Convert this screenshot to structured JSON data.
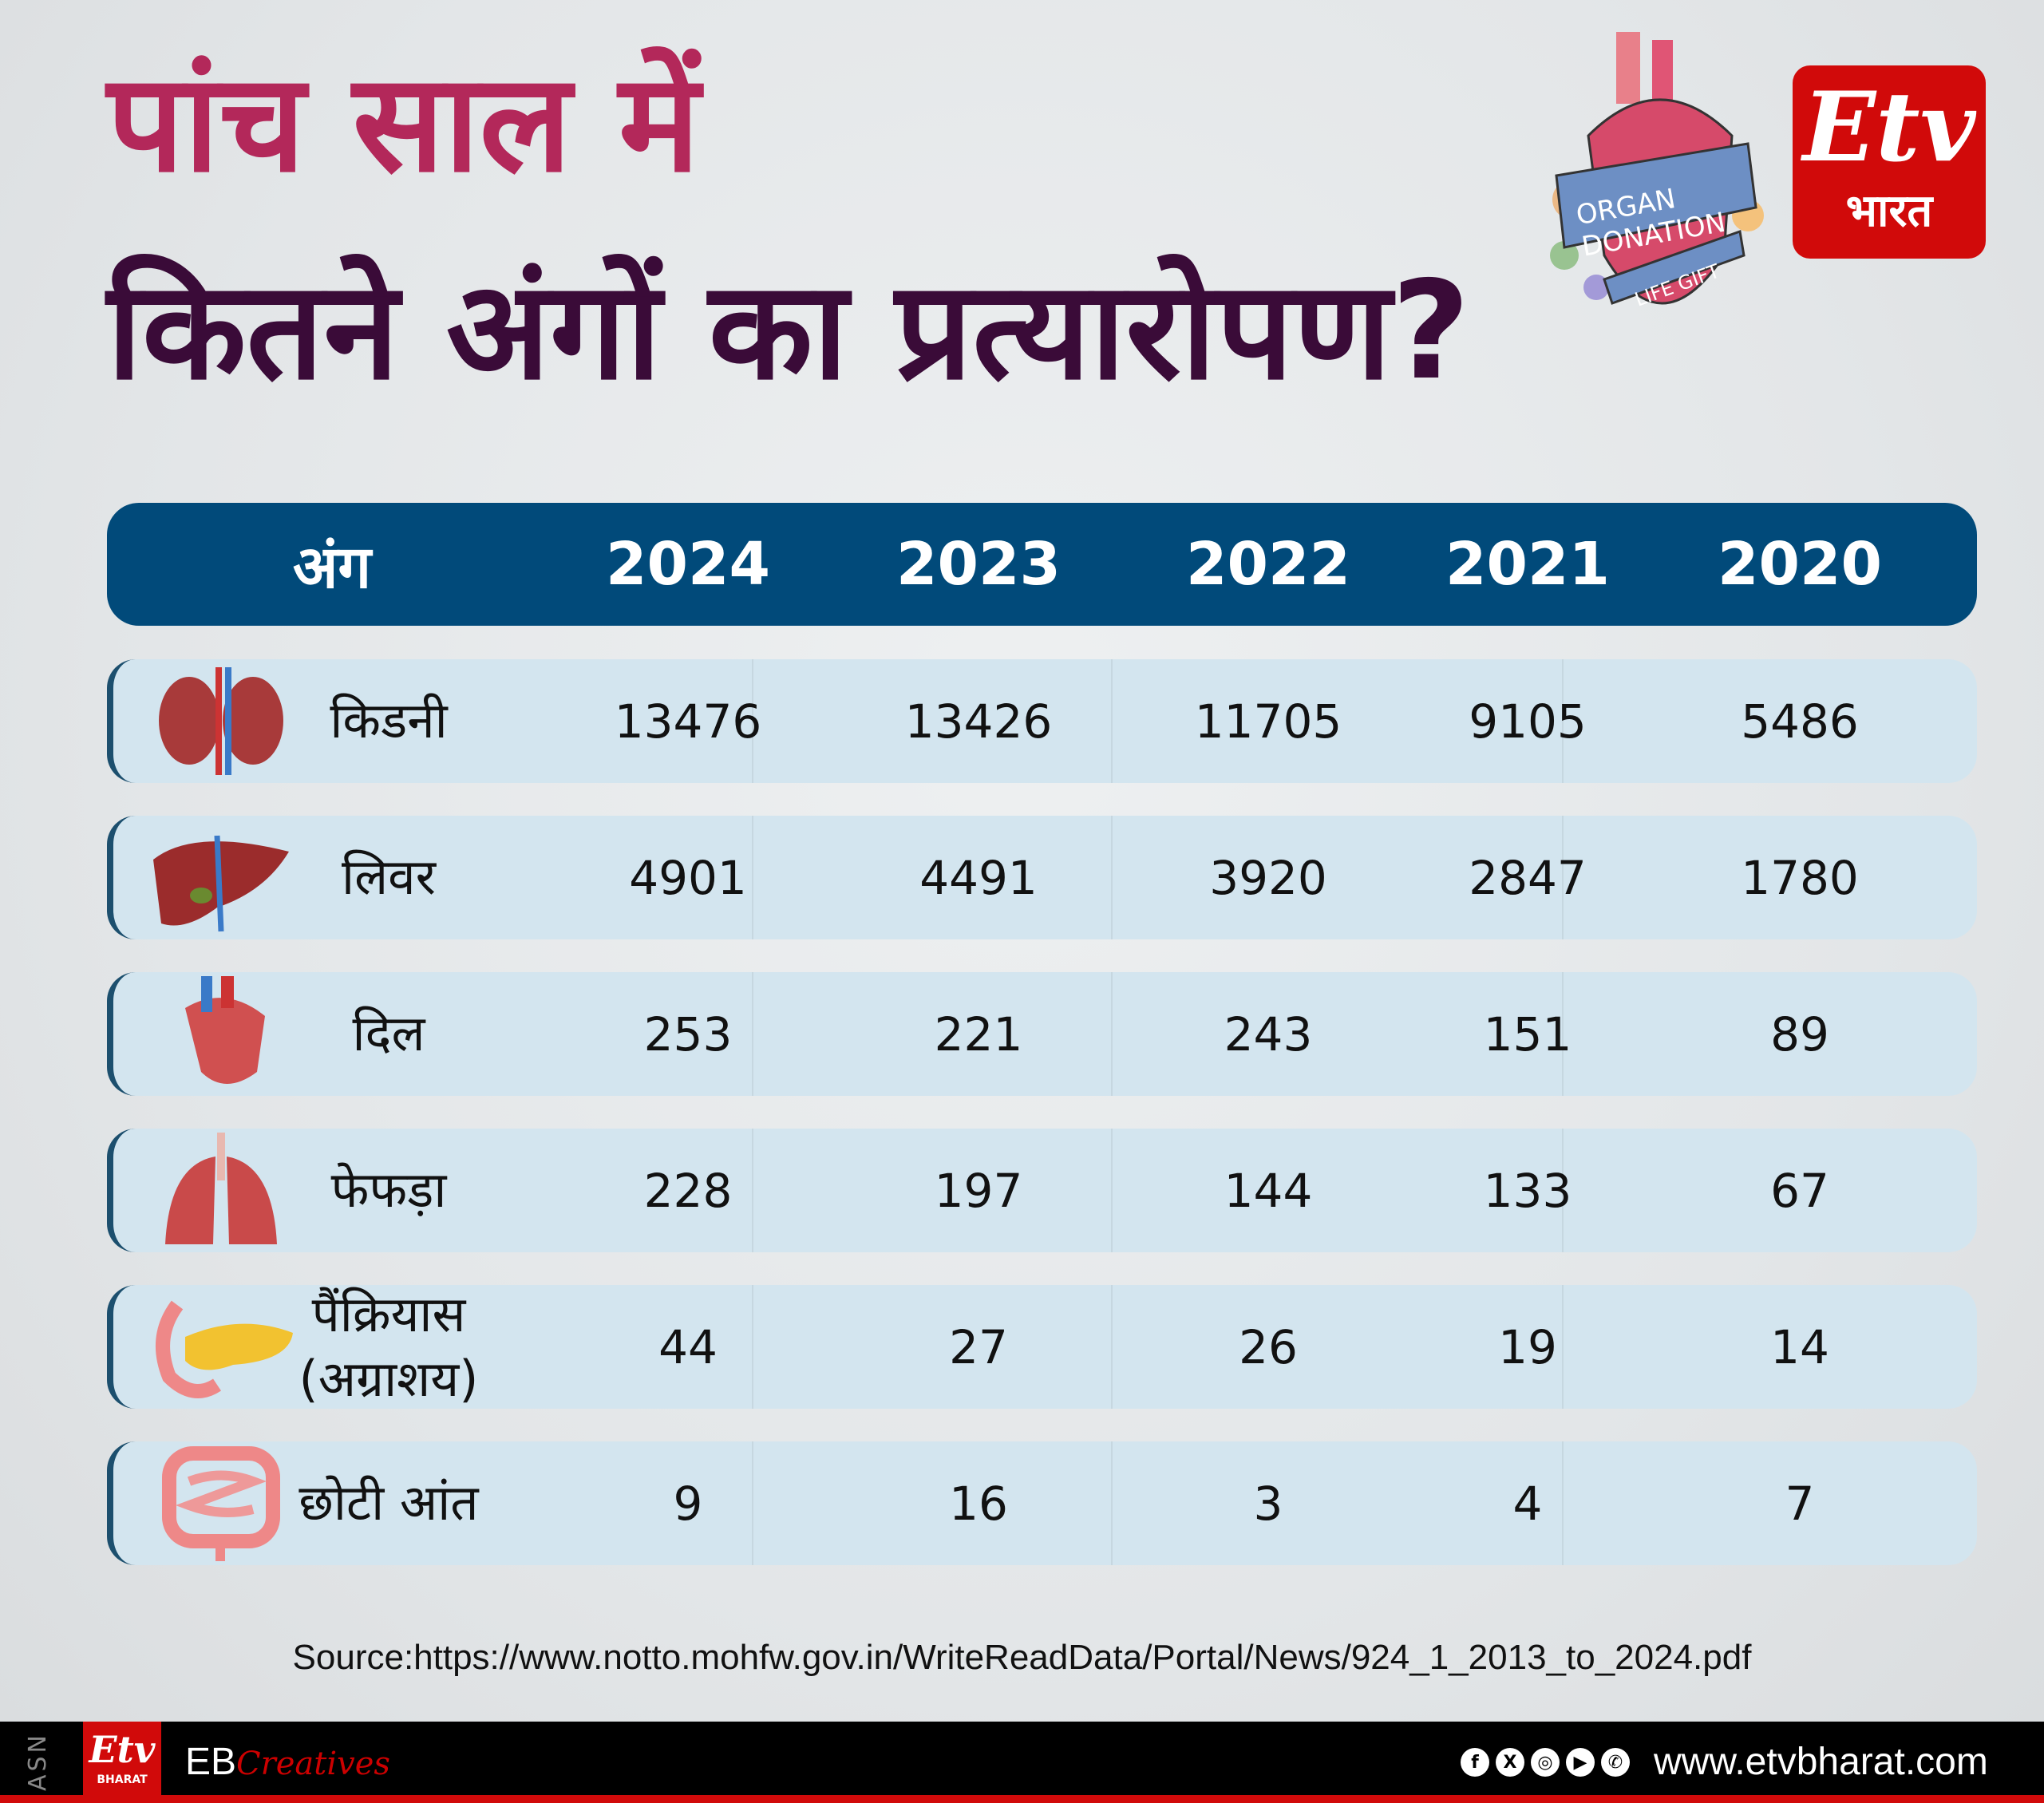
{
  "title": {
    "line1": "पांच साल में",
    "line2": "कितने अंगों का प्रत्यारोपण?"
  },
  "badge": {
    "heart_text_1": "ORGAN",
    "heart_text_2": "DONATION",
    "heart_text_3": "LIFE GIFT"
  },
  "logo": {
    "mark": "Etv",
    "sub": "भारत"
  },
  "table": {
    "headers": [
      "अंग",
      "2024",
      "2023",
      "2022",
      "2021",
      "2020"
    ],
    "rows": [
      {
        "organ": "किडनी",
        "icon": "kidney-icon",
        "values": [
          "13476",
          "13426",
          "11705",
          "9105",
          "5486"
        ]
      },
      {
        "organ": "लिवर",
        "icon": "liver-icon",
        "values": [
          "4901",
          "4491",
          "3920",
          "2847",
          "1780"
        ]
      },
      {
        "organ": "दिल",
        "icon": "heart-icon",
        "values": [
          "253",
          "221",
          "243",
          "151",
          "89"
        ]
      },
      {
        "organ": "फेफड़ा",
        "icon": "lungs-icon",
        "values": [
          "228",
          "197",
          "144",
          "133",
          "67"
        ]
      },
      {
        "organ": "पैंक्रियास\n(अग्राशय)",
        "icon": "pancreas-icon",
        "values": [
          "44",
          "27",
          "26",
          "19",
          "14"
        ]
      },
      {
        "organ": "छोटी आंत",
        "icon": "intestine-icon",
        "values": [
          "9",
          "16",
          "3",
          "4",
          "7"
        ]
      }
    ]
  },
  "source": "Source:https://www.notto.mohfw.gov.in/WriteReadData/Portal/News/924_1_2013_to_2024.pdf",
  "footer": {
    "asn": "ASN",
    "logo_mark": "Etv",
    "logo_sub": "BHARAT",
    "eb": "EB",
    "creatives": "Creatives",
    "social": [
      "f",
      "X",
      "◎",
      "▶",
      "✆"
    ],
    "website": "www.etvbharat.com"
  },
  "colors": {
    "title1": "#b3285a",
    "title2": "#3a0b38",
    "header": "#014a7a",
    "row": "#d3e5ef",
    "brand_red": "#d10a0a"
  }
}
